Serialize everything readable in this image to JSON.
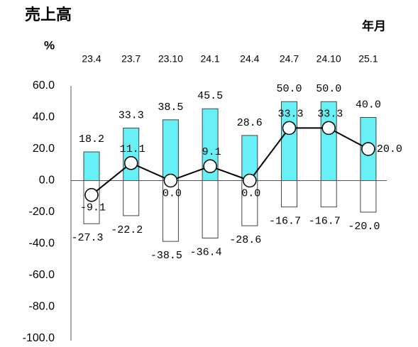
{
  "chart_data": {
    "type": "bar-line",
    "title": "売上高",
    "y_label": "%",
    "x_label": "年月",
    "categories": [
      "23.4",
      "23.7",
      "23.10",
      "24.1",
      "24.4",
      "24.7",
      "24.10",
      "25.1"
    ],
    "series": [
      {
        "type": "bar",
        "color": "#66f0f5",
        "values": [
          18.2,
          33.3,
          38.5,
          45.5,
          28.6,
          50.0,
          50.0,
          40.0
        ],
        "value_labels": [
          "18.2",
          "33.3",
          "38.5",
          "45.5",
          "28.6",
          "50.0",
          "50.0",
          "40.0"
        ]
      },
      {
        "type": "bar",
        "color": "#ffffff",
        "values": [
          -27.3,
          -22.2,
          -38.5,
          -36.4,
          -28.6,
          -16.7,
          -16.7,
          -20.0
        ],
        "value_labels": [
          "-27.3",
          "-22.2",
          "-38.5",
          "-36.4",
          "-28.6",
          "-16.7",
          "-16.7",
          "-20.0"
        ]
      },
      {
        "type": "line",
        "color": "#000000",
        "values": [
          -9.1,
          11.1,
          0.0,
          9.1,
          0.0,
          33.3,
          33.3,
          20.0
        ],
        "value_labels": [
          "-9.1",
          "11.1",
          "0.0",
          "9.1",
          "0.0",
          "33.3",
          "33.3",
          "20.0"
        ]
      }
    ],
    "ylim": [
      -100,
      60
    ],
    "yticks": [
      {
        "value": 60,
        "label": "60.0"
      },
      {
        "value": 40,
        "label": "40.0"
      },
      {
        "value": 20,
        "label": "20.0"
      },
      {
        "value": 0,
        "label": "0.0"
      },
      {
        "value": -20,
        "label": "-20.0"
      },
      {
        "value": -40,
        "label": "-40.0"
      },
      {
        "value": -60,
        "label": "-60.0"
      },
      {
        "value": -80,
        "label": "-80.0"
      },
      {
        "value": -100,
        "label": "-100.0"
      }
    ],
    "grid": false
  }
}
